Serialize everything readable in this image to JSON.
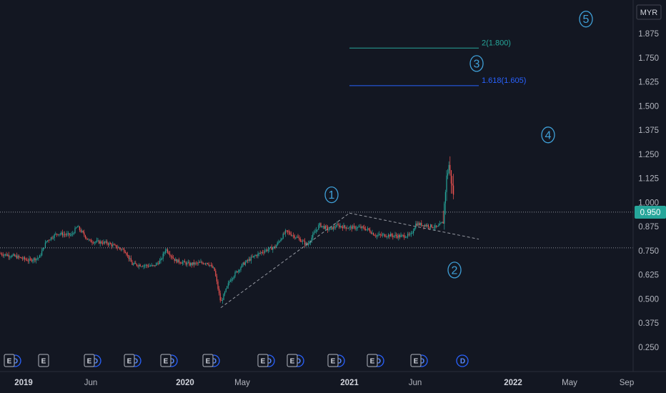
{
  "chart_data": {
    "type": "candlestick",
    "currency": "MYR",
    "last_price": "0.950",
    "y_ticks": [
      "1.875",
      "1.750",
      "1.625",
      "1.500",
      "1.375",
      "1.250",
      "1.125",
      "1.000",
      "0.875",
      "0.750",
      "0.625",
      "0.500",
      "0.375",
      "0.250"
    ],
    "y_tick_values": [
      1.875,
      1.75,
      1.625,
      1.5,
      1.375,
      1.25,
      1.125,
      1.0,
      0.875,
      0.75,
      0.625,
      0.5,
      0.375,
      0.25
    ],
    "x_ticks": [
      {
        "label": "2019",
        "bold": true
      },
      {
        "label": "Jun",
        "bold": false
      },
      {
        "label": "2020",
        "bold": true
      },
      {
        "label": "May",
        "bold": false
      },
      {
        "label": "2021",
        "bold": true
      },
      {
        "label": "Jun",
        "bold": false
      },
      {
        "label": "2022",
        "bold": true
      },
      {
        "label": "May",
        "bold": false
      },
      {
        "label": "Sep",
        "bold": false
      }
    ],
    "horizontal_levels": [
      0.95,
      0.765
    ],
    "fib_levels": [
      {
        "label": "2(1.800)",
        "value": 1.8,
        "color": "#26a69a"
      },
      {
        "label": "1.618(1.605)",
        "value": 1.605,
        "color": "#2962ff"
      }
    ],
    "wave_labels": [
      {
        "label": "1",
        "value": 1.04
      },
      {
        "label": "2",
        "value": 0.65
      },
      {
        "label": "3",
        "value": 1.72
      },
      {
        "label": "4",
        "value": 1.35
      },
      {
        "label": "5",
        "value": 1.95
      }
    ],
    "trend_points": [
      0.455,
      0.945,
      0.81
    ],
    "earnings_markers": [
      "E",
      "E",
      "E",
      "E",
      "E",
      "E",
      "E",
      "E",
      "E",
      "E",
      "E"
    ],
    "dividend_markers": [
      "D",
      "D",
      "D",
      "D",
      "D",
      "D",
      "D",
      "D",
      "D",
      "D",
      "D"
    ],
    "colors": {
      "up": "#26a69a",
      "down": "#ef5350",
      "background": "#131722",
      "grid": "#2a2e39",
      "price_tag": "#26a69a"
    }
  }
}
